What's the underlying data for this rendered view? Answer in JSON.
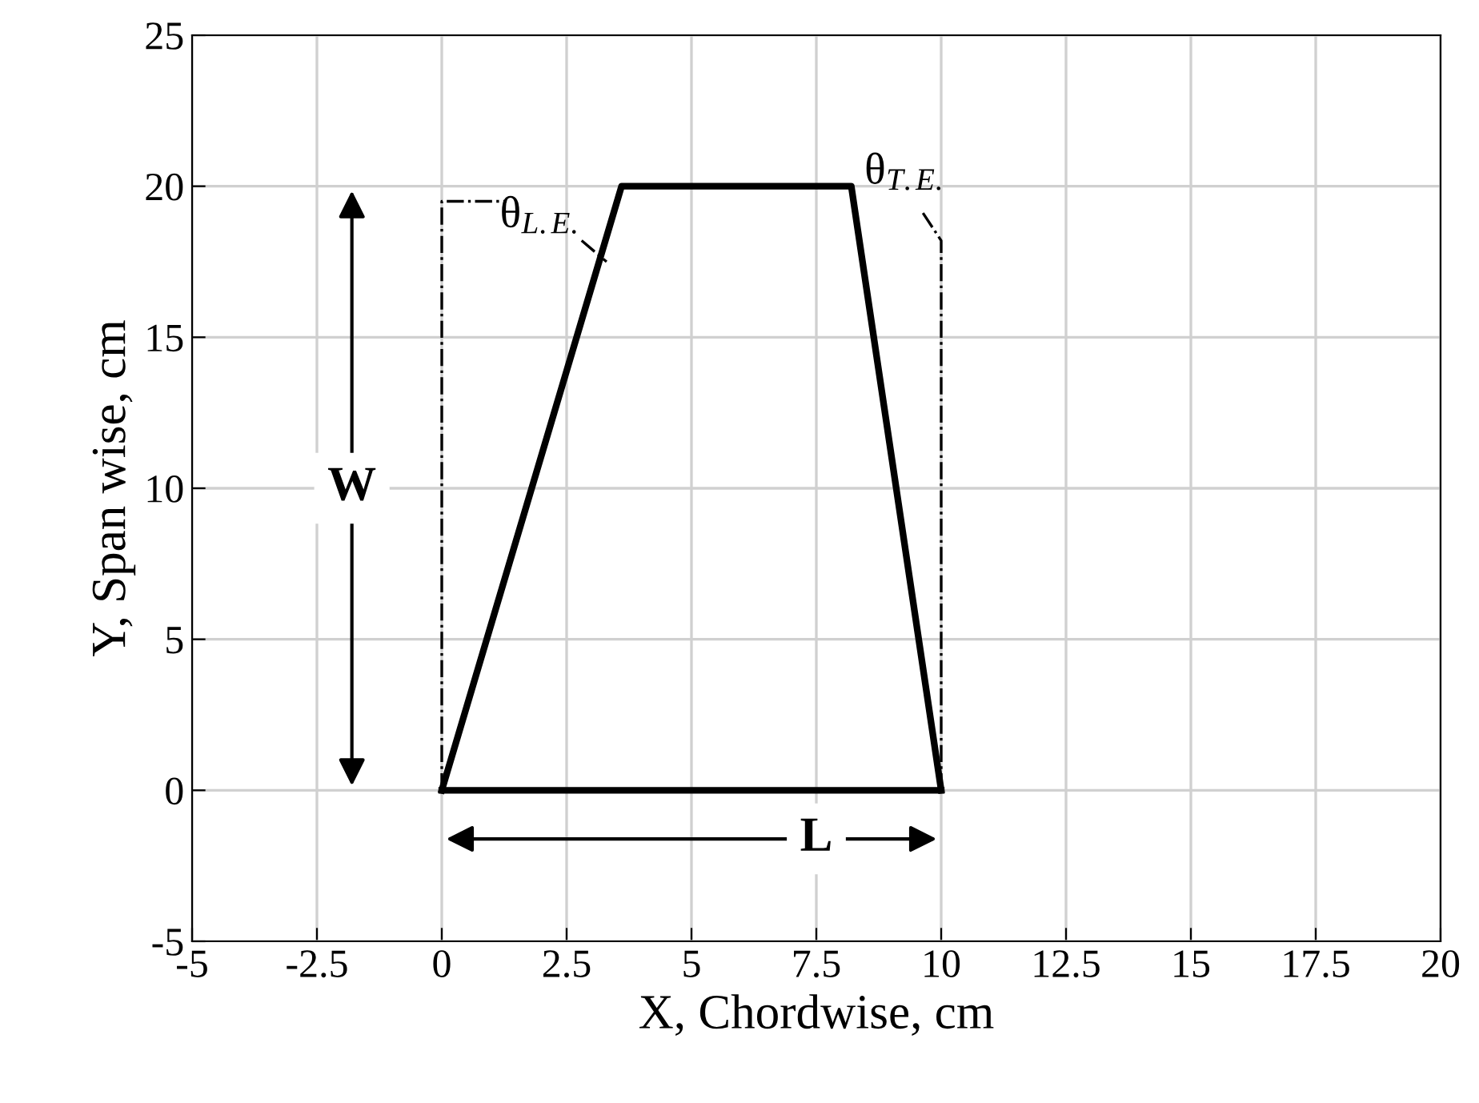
{
  "chart_data": {
    "type": "line",
    "xlabel": "X, Chordwise, cm",
    "ylabel": "Y, Span wise, cm",
    "xlim": [
      -5,
      20
    ],
    "xticks": [
      -5,
      -2.5,
      0,
      2.5,
      5,
      7.5,
      10,
      12.5,
      15,
      17.5,
      20
    ],
    "ylim": [
      -5,
      25
    ],
    "yticks": [
      -5,
      0,
      5,
      10,
      15,
      20,
      25
    ],
    "grid": true,
    "legend": false,
    "marker": "none",
    "series": [
      {
        "color": "#000000",
        "x": [
          0,
          3.6,
          8.2,
          10
        ],
        "values": [
          0,
          20,
          20,
          0
        ],
        "line_style": "solid"
      },
      {
        "color": "#000000",
        "x": [
          0,
          10
        ],
        "values": [
          0,
          0
        ],
        "line_style": "solid"
      },
      {
        "color": "#000000",
        "x": [
          0,
          0,
          1.3
        ],
        "values": [
          0,
          19.5,
          19.5
        ],
        "line_style": "dashed"
      },
      {
        "color": "#000000",
        "x": [
          10,
          10,
          9.6
        ],
        "values": [
          0,
          18.2,
          19.2
        ],
        "line_style": "dashed"
      },
      {
        "color": "#000000",
        "x": [
          2.8,
          3.3
        ],
        "values": [
          18.2,
          17.5
        ],
        "line_style": "dashed"
      }
    ],
    "annotations": [
      "W",
      "L",
      "θ$_{L.E.}$",
      "θ$_{T.E.}$"
    ]
  }
}
